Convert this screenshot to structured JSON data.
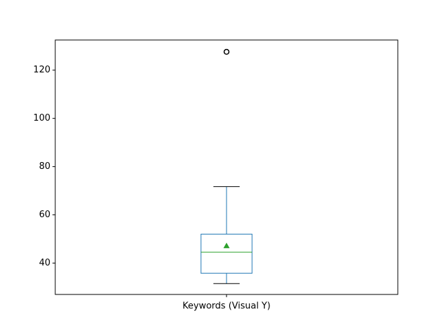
{
  "chart_data": {
    "type": "box",
    "title": "",
    "xlabel": "",
    "ylabel": "",
    "categories": [
      "Keywords (Visual Y)"
    ],
    "boxes": [
      {
        "label": "Keywords (Visual Y)",
        "whisker_low": 31.5,
        "q1": 35.8,
        "median": 44.5,
        "q3": 52.0,
        "whisker_high": 71.7,
        "mean": 47.2,
        "outliers": [
          127.6
        ]
      }
    ],
    "ylim": [
      27,
      132.5
    ],
    "yticks": [
      40,
      60,
      80,
      100,
      120
    ],
    "ytick_labels": [
      "40",
      "60",
      "80",
      "100",
      "120"
    ],
    "grid": false,
    "colors": {
      "box": "#1f77b4",
      "median": "#2ca02c",
      "mean_marker": "#2ca02c",
      "caps": "#000000",
      "outlier": "#000000",
      "axes": "#000000"
    }
  }
}
